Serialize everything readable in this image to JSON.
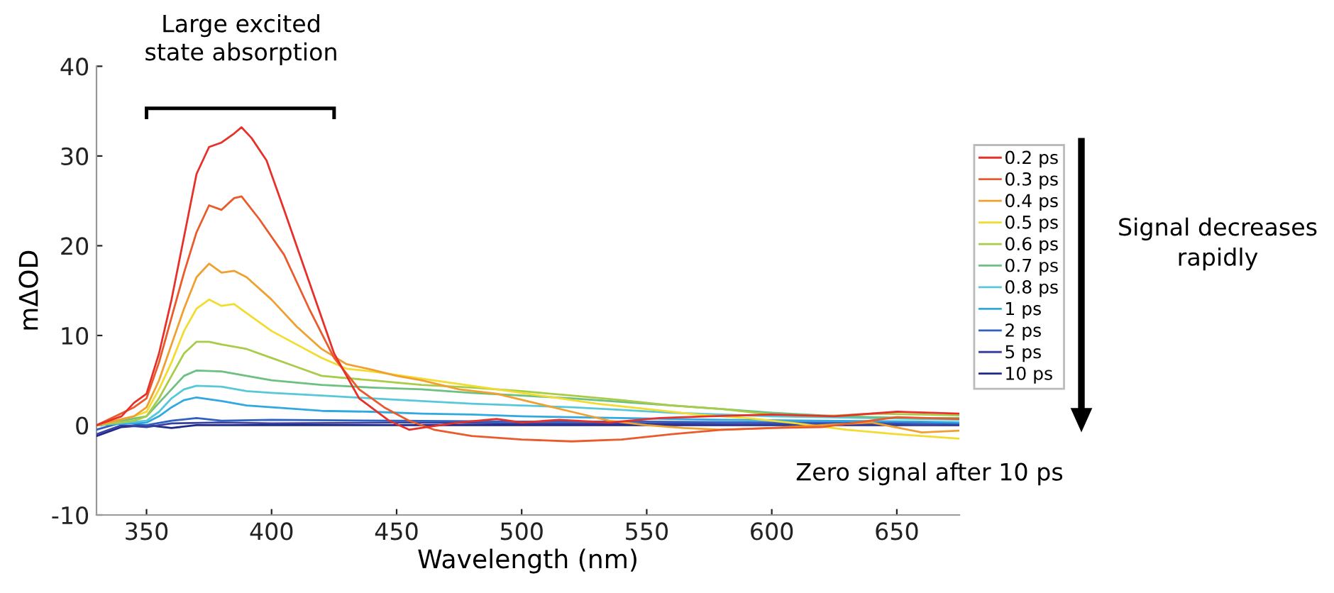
{
  "chart_data": {
    "type": "line",
    "xlabel": "Wavelength (nm)",
    "ylabel": "mΔOD",
    "xlim": [
      330,
      675
    ],
    "xticks": [
      350,
      400,
      450,
      500,
      550,
      600,
      650
    ],
    "ylim": [
      -10,
      40
    ],
    "yticks": [
      -10,
      0,
      10,
      20,
      30,
      40
    ],
    "grid": false,
    "legend": "right",
    "marker": "none",
    "line_style": "solid",
    "annotations": [
      "Large excited\nstate absorption",
      "Signal decreases\nrapidly",
      "Zero signal after 10 ps"
    ],
    "series": [
      {
        "name": "0.2 ps",
        "color": "#e8302a",
        "x": [
          330,
          340,
          345,
          350,
          355,
          360,
          365,
          370,
          375,
          380,
          385,
          388,
          392,
          398,
          405,
          415,
          425,
          435,
          447,
          455,
          462,
          475,
          490,
          500,
          515,
          535,
          555,
          575,
          600,
          625,
          650,
          675
        ],
        "values": [
          0,
          1,
          2.5,
          3.5,
          8,
          14,
          21,
          28,
          31,
          31.5,
          32.5,
          33.2,
          32,
          29.5,
          24,
          16,
          8,
          3,
          0.5,
          -0.5,
          -0.2,
          0.3,
          0.7,
          0.3,
          0.6,
          0.3,
          0.8,
          1.0,
          1.2,
          1.0,
          1.5,
          1.3
        ]
      },
      {
        "name": "0.3 ps",
        "color": "#ea5a2a",
        "x": [
          330,
          345,
          350,
          355,
          360,
          365,
          370,
          375,
          380,
          385,
          388,
          395,
          405,
          415,
          425,
          435,
          445,
          455,
          465,
          480,
          500,
          520,
          540,
          560,
          580,
          600,
          620,
          650,
          675
        ],
        "values": [
          0,
          2,
          3,
          7,
          12,
          17,
          21.5,
          24.5,
          24,
          25.3,
          25.5,
          23,
          19,
          13,
          7.5,
          4,
          2,
          0.5,
          -0.5,
          -1.2,
          -1.6,
          -1.8,
          -1.6,
          -1,
          -0.5,
          -0.3,
          -0.2,
          0.9,
          0.7
        ]
      },
      {
        "name": "0.4 ps",
        "color": "#f0a030",
        "x": [
          330,
          345,
          350,
          355,
          360,
          365,
          370,
          375,
          380,
          385,
          390,
          400,
          410,
          420,
          430,
          440,
          450,
          460,
          475,
          490,
          505,
          520,
          535,
          550,
          565,
          580,
          600,
          620,
          640,
          660,
          675
        ],
        "values": [
          0,
          1,
          2,
          5,
          9,
          13,
          16.5,
          18,
          17,
          17.2,
          16.5,
          14,
          11,
          8.5,
          6.8,
          6.2,
          5.5,
          5,
          4,
          3.5,
          2.5,
          1.5,
          0.5,
          0,
          -0.3,
          -0.5,
          -0.3,
          0,
          0.3,
          -0.8,
          -0.6
        ]
      },
      {
        "name": "0.5 ps",
        "color": "#f2dc30",
        "x": [
          330,
          345,
          350,
          355,
          360,
          365,
          370,
          375,
          380,
          385,
          390,
          400,
          410,
          420,
          430,
          440,
          450,
          470,
          490,
          510,
          530,
          550,
          570,
          590,
          610,
          630,
          650,
          675
        ],
        "values": [
          0,
          1,
          1.5,
          4,
          7,
          10.5,
          13,
          14,
          13.3,
          13.5,
          12.5,
          10.5,
          9,
          7.5,
          6.3,
          6,
          5.6,
          4.8,
          4,
          3.2,
          2.4,
          1.8,
          1.2,
          0.8,
          0.2,
          -0.5,
          -1,
          -1.5
        ]
      },
      {
        "name": "0.6 ps",
        "color": "#a8cc48",
        "x": [
          330,
          345,
          350,
          355,
          360,
          365,
          370,
          375,
          380,
          390,
          400,
          410,
          420,
          440,
          460,
          480,
          500,
          520,
          540,
          560,
          580,
          600,
          620,
          640,
          660,
          675
        ],
        "values": [
          0,
          0.5,
          1,
          3,
          5.5,
          8,
          9.3,
          9.3,
          9,
          8.5,
          7.5,
          6.5,
          5.5,
          5,
          4.5,
          4.2,
          3.8,
          3.3,
          2.8,
          2.2,
          1.8,
          1.2,
          1,
          1.3,
          1.2,
          1.1
        ]
      },
      {
        "name": "0.7 ps",
        "color": "#6cc080",
        "x": [
          330,
          350,
          355,
          360,
          365,
          370,
          380,
          390,
          400,
          420,
          440,
          460,
          480,
          500,
          520,
          540,
          560,
          580,
          600,
          620,
          640,
          660,
          675
        ],
        "values": [
          0,
          1,
          2.5,
          4,
          5.5,
          6.1,
          6,
          5.5,
          5,
          4.5,
          4.2,
          4,
          3.6,
          3.3,
          3,
          2.6,
          2.2,
          1.8,
          1.4,
          1.1,
          0.9,
          0.8,
          0.8
        ]
      },
      {
        "name": "0.8 ps",
        "color": "#58c8d8",
        "x": [
          330,
          350,
          355,
          360,
          365,
          370,
          380,
          390,
          400,
          420,
          440,
          460,
          480,
          500,
          520,
          540,
          560,
          580,
          600,
          620,
          640,
          660,
          675
        ],
        "values": [
          0,
          0.5,
          1.5,
          3,
          4,
          4.4,
          4.3,
          3.8,
          3.6,
          3.3,
          3,
          2.7,
          2.4,
          2.2,
          2,
          1.7,
          1.4,
          1.2,
          1,
          0.9,
          0.8,
          0.7,
          0.6
        ]
      },
      {
        "name": "1 ps",
        "color": "#30a8e0",
        "x": [
          330,
          350,
          355,
          360,
          365,
          370,
          380,
          390,
          400,
          420,
          440,
          460,
          480,
          500,
          540,
          580,
          620,
          660,
          675
        ],
        "values": [
          0,
          0.3,
          1,
          2,
          2.8,
          3.1,
          2.7,
          2.2,
          2,
          1.6,
          1.5,
          1.3,
          1.2,
          1,
          0.8,
          0.6,
          0.5,
          0.4,
          0.3
        ]
      },
      {
        "name": "2 ps",
        "color": "#3060c0",
        "x": [
          330,
          340,
          350,
          360,
          370,
          380,
          400,
          450,
          500,
          550,
          600,
          650,
          675
        ],
        "values": [
          -0.5,
          0.3,
          0,
          0.5,
          0.8,
          0.5,
          0.6,
          0.5,
          0.4,
          0.4,
          0.3,
          0.3,
          0.2
        ]
      },
      {
        "name": "5 ps",
        "color": "#3840a0",
        "x": [
          330,
          340,
          350,
          360,
          380,
          400,
          450,
          500,
          550,
          600,
          650,
          675
        ],
        "values": [
          -1,
          0,
          -0.2,
          0.2,
          0.3,
          0.2,
          0.3,
          0.2,
          0.2,
          0.1,
          0.1,
          0
        ]
      },
      {
        "name": "10 ps",
        "color": "#202888",
        "x": [
          330,
          340,
          350,
          360,
          370,
          400,
          450,
          500,
          550,
          600,
          650,
          675
        ],
        "values": [
          -1.2,
          -0.2,
          0,
          -0.3,
          0,
          0,
          0,
          0,
          0,
          0,
          0,
          0
        ]
      }
    ]
  }
}
